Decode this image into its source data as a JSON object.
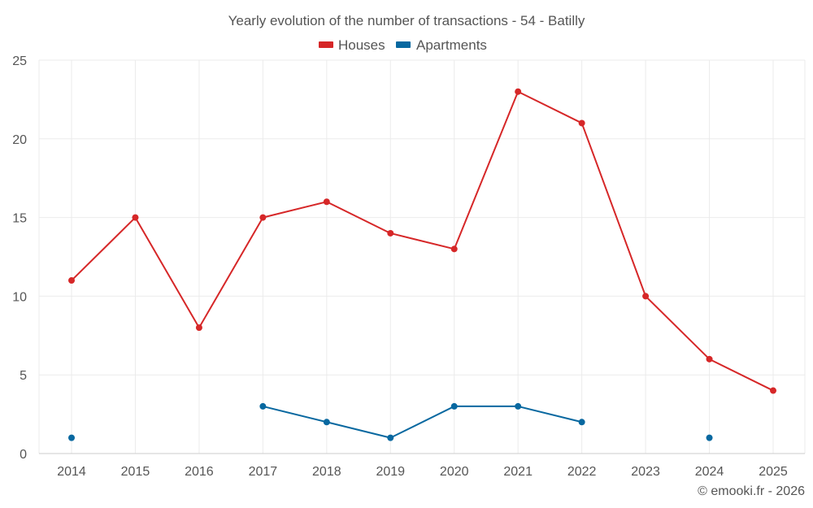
{
  "chart_data": {
    "type": "line",
    "title": "Yearly evolution of the number of transactions - 54 - Batilly",
    "xlabel": "",
    "ylabel": "",
    "categories": [
      "2014",
      "2015",
      "2016",
      "2017",
      "2018",
      "2019",
      "2020",
      "2021",
      "2022",
      "2023",
      "2024",
      "2025"
    ],
    "ylim": [
      0,
      25
    ],
    "yticks": [
      0,
      5,
      10,
      15,
      20,
      25
    ],
    "grid": true,
    "legend_position": "top-center",
    "series": [
      {
        "name": "Houses",
        "color": "#d62728",
        "values": [
          11,
          15,
          8,
          15,
          16,
          14,
          13,
          23,
          21,
          10,
          6,
          4
        ]
      },
      {
        "name": "Apartments",
        "color": "#0868a0",
        "values": [
          1,
          null,
          null,
          3,
          2,
          1,
          3,
          3,
          2,
          null,
          1,
          null
        ]
      }
    ],
    "credit": "© emooki.fr - 2026"
  }
}
